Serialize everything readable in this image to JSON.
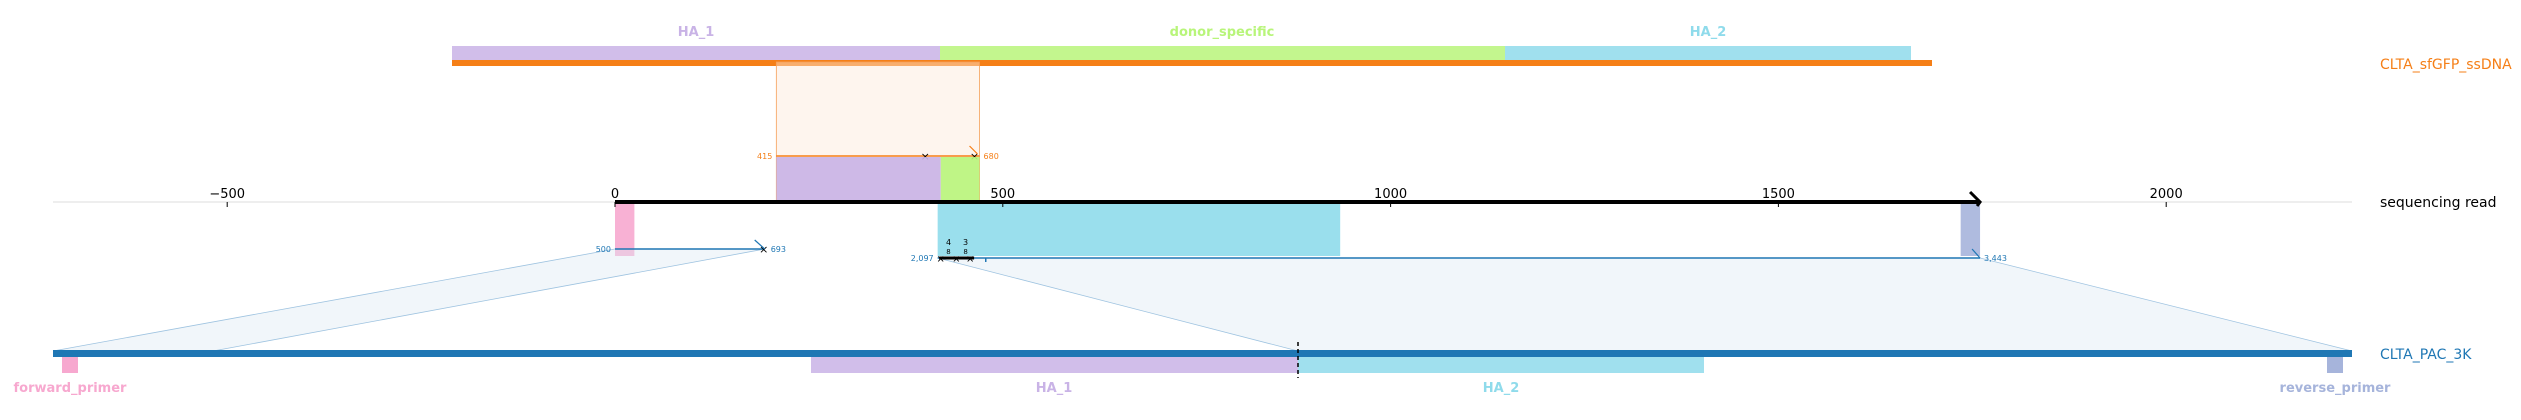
{
  "tracks": {
    "donor": {
      "name": "CLTA_sfGFP_ssDNA",
      "color": "#f57f17",
      "features": [
        {
          "label": "HA_1",
          "color": "#c9b3e6"
        },
        {
          "label": "donor_specific",
          "color": "#b8f57a"
        },
        {
          "label": "HA_2",
          "color": "#8fdbeb"
        }
      ]
    },
    "read": {
      "name": "sequencing read",
      "color": "#000000"
    },
    "reference": {
      "name": "CLTA_PAC_3K",
      "color": "#1f77b4",
      "features": [
        {
          "label": "forward_primer",
          "color": "#f7a8cf"
        },
        {
          "label": "HA_1",
          "color": "#c9b3e6"
        },
        {
          "label": "HA_2",
          "color": "#8fdbeb"
        },
        {
          "label": "reverse_primer",
          "color": "#a6b4db"
        }
      ]
    }
  },
  "axis": {
    "min": -700,
    "max": 2250,
    "ticks": [
      -500,
      0,
      500,
      1000,
      1500,
      2000
    ],
    "tick_labels": [
      "−500",
      "0",
      "500",
      "1000",
      "1500",
      "2000"
    ]
  },
  "read_features": [
    {
      "start": 0,
      "end": 25,
      "color": "#f7a8cf"
    },
    {
      "start": 208,
      "end": 420,
      "color": "#c9b3e6"
    },
    {
      "start": 420,
      "end": 470,
      "color": "#b8f57a"
    },
    {
      "start": 416,
      "end": 935,
      "color": "#8fdbeb"
    },
    {
      "start": 1735,
      "end": 1760,
      "color": "#a6b4db"
    }
  ],
  "alignments": {
    "donor": {
      "start": 208,
      "end": 470,
      "start_label": "415",
      "end_label": "680",
      "strand": "-"
    },
    "ref_fwd": {
      "start": 0,
      "end": 193,
      "start_label": "500",
      "end_label": "693"
    },
    "ref_rev": {
      "start": 416,
      "end": 1760,
      "start_label": "2,097",
      "end_label": "3,443"
    },
    "indels": [
      {
        "x": 430,
        "top": "4",
        "bottom": "8"
      },
      {
        "x": 452,
        "top": "3",
        "bottom": "8"
      }
    ]
  }
}
